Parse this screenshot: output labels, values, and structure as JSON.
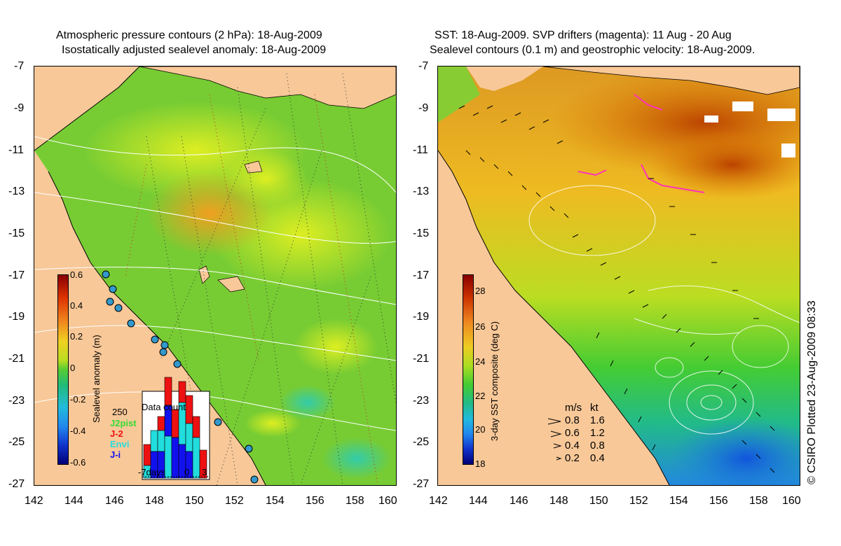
{
  "left_panel": {
    "title_line1": "Atmospheric pressure contours (2 hPa): 18-Aug-2009",
    "title_line2": "Isostatically adjusted sealevel anomaly: 18-Aug-2009",
    "colorbar_label": "Sealevel anomaly (m)",
    "colorbar_ticks": [
      "0.6",
      "0.4",
      "0.2",
      "0",
      "-0.2",
      "-0.4",
      "-0.6"
    ],
    "histogram": {
      "title": "Data count",
      "max_label": "250",
      "x_labels": [
        "-7days",
        "0",
        "3"
      ],
      "legend": [
        {
          "label": "J2pist",
          "color": "#33dd33"
        },
        {
          "label": "J-2",
          "color": "#ee1111"
        },
        {
          "label": "Envi",
          "color": "#22dddd"
        },
        {
          "label": "J-i",
          "color": "#1111ee"
        }
      ]
    }
  },
  "right_panel": {
    "title_line1": "SST: 18-Aug-2009. SVP drifters (magenta): 11 Aug - 20 Aug",
    "title_line2": "Sealevel contours (0.1 m) and geostrophic velocity: 18-Aug-2009.",
    "colorbar_label": "3-day SST composite (deg C)",
    "colorbar_ticks": [
      "28",
      "26",
      "24",
      "22",
      "20",
      "18"
    ],
    "velocity_legend": {
      "header_ms": "m/s",
      "header_kt": "kt",
      "rows": [
        {
          "ms": "0.8",
          "kt": "1.6"
        },
        {
          "ms": "0.6",
          "kt": "1.2"
        },
        {
          "ms": "0.4",
          "kt": "0.8"
        },
        {
          "ms": "0.2",
          "kt": "0.4"
        }
      ]
    }
  },
  "axes": {
    "lat_ticks": [
      "-7",
      "-9",
      "-11",
      "-13",
      "-15",
      "-17",
      "-19",
      "-21",
      "-23",
      "-25",
      "-27"
    ],
    "lon_ticks": [
      "142",
      "144",
      "146",
      "148",
      "150",
      "152",
      "154",
      "156",
      "158",
      "160"
    ]
  },
  "copyright": "© CSIRO Plotted 23-Aug-2009 08:33",
  "colors": {
    "land": "#f8c898",
    "sla_mid": "#66cc33",
    "sst_warm": "#e8a020",
    "sst_hot": "#bb4400"
  }
}
